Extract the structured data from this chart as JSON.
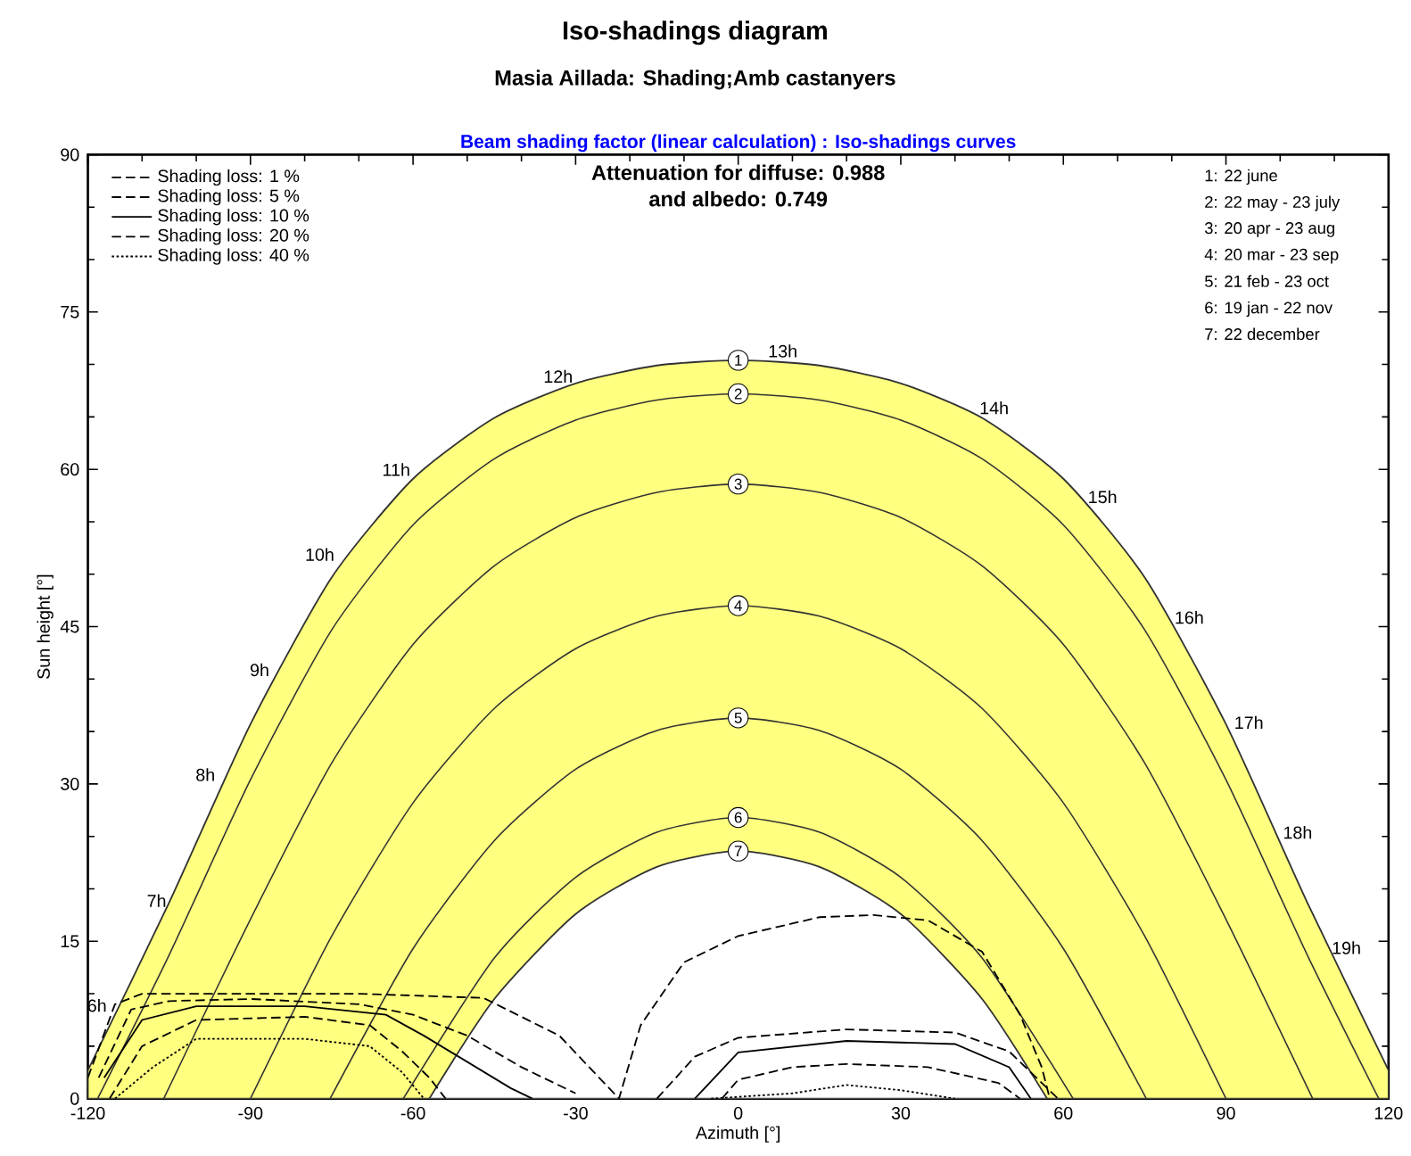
{
  "chart_data": {
    "type": "line",
    "title": "Iso-shadings diagram",
    "subtitle": "Masia Aillada: Shading;Amb castanyers",
    "xlabel": "Azimuth [°]",
    "ylabel": "Sun height [°]",
    "xlim": [
      -120,
      120
    ],
    "ylim": [
      0,
      90
    ],
    "xticks": [
      -120,
      -90,
      -60,
      -30,
      0,
      30,
      60,
      90,
      120
    ],
    "yticks": [
      0,
      15,
      30,
      45,
      60,
      75,
      90
    ],
    "legend": "top left",
    "series": [
      {
        "name": "1",
        "type": "area",
        "color": "#ffff80",
        "x": [
          -120,
          -105,
          -90,
          -75,
          -60,
          -45,
          -30,
          -15,
          0,
          15,
          30,
          45,
          60,
          75,
          90,
          105,
          120
        ],
        "values": [
          2.7,
          18.7,
          35.7,
          49.7,
          59.1,
          64.9,
          68.2,
          69.9,
          70.4,
          69.9,
          68.2,
          64.9,
          59.1,
          49.7,
          35.7,
          18.7,
          2.7
        ]
      },
      {
        "name": "7",
        "type": "area",
        "color": "#ffffff",
        "x": [
          -57,
          -45,
          -30,
          -15,
          0,
          15,
          30,
          45,
          57
        ],
        "values": [
          0,
          9.5,
          17.6,
          22.1,
          23.6,
          22.1,
          17.6,
          9.5,
          0
        ]
      },
      {
        "name": "2",
        "type": "line",
        "color": "#333333",
        "x": [
          -118.2,
          -105,
          -90,
          -75,
          -60,
          -45,
          -30,
          -15,
          0,
          15,
          30,
          45,
          60,
          75,
          90,
          105,
          118.2
        ],
        "values": [
          0,
          13.7,
          30.4,
          44.7,
          54.7,
          61.0,
          64.7,
          66.6,
          67.2,
          66.6,
          64.7,
          61.0,
          54.7,
          44.7,
          30.4,
          13.7,
          0
        ]
      },
      {
        "name": "3",
        "type": "line",
        "color": "#333333",
        "x": [
          -106,
          -90,
          -75,
          -60,
          -45,
          -30,
          -15,
          0,
          15,
          30,
          45,
          60,
          75,
          90,
          106
        ],
        "values": [
          0,
          17.1,
          32.0,
          43.3,
          50.8,
          55.4,
          57.8,
          58.6,
          57.8,
          55.4,
          50.8,
          43.3,
          32.0,
          17.1,
          0
        ]
      },
      {
        "name": "4",
        "type": "line",
        "color": "#333333",
        "x": [
          -90,
          -75,
          -60,
          -45,
          -30,
          -15,
          0,
          15,
          30,
          45,
          60,
          75,
          90
        ],
        "values": [
          0,
          15.5,
          28.2,
          37.2,
          42.9,
          46.0,
          47.0,
          46.0,
          42.9,
          37.2,
          28.2,
          15.5,
          0
        ]
      },
      {
        "name": "5",
        "type": "line",
        "color": "#333333",
        "x": [
          -75.3,
          -60,
          -45,
          -30,
          -15,
          0,
          15,
          30,
          45,
          60,
          75.3
        ],
        "values": [
          0,
          14.3,
          24.6,
          31.4,
          35.1,
          36.3,
          35.1,
          31.4,
          24.6,
          14.3,
          0
        ]
      },
      {
        "name": "6",
        "type": "line",
        "color": "#333333",
        "x": [
          -61.8,
          -45,
          -30,
          -15,
          0,
          15,
          30,
          45,
          61.8
        ],
        "values": [
          0,
          13.4,
          21.1,
          25.4,
          26.8,
          25.4,
          21.1,
          13.4,
          0
        ]
      },
      {
        "name": "Shading loss: 1 %",
        "type": "line",
        "color": "#000000",
        "line_style": "dashed",
        "x": [
          -120,
          -115,
          -110,
          -90,
          -70,
          -47,
          -33,
          -22,
          -18,
          -10,
          0,
          15,
          25,
          35,
          45,
          52,
          56,
          57.5
        ],
        "values": [
          2,
          9,
          10,
          10,
          10,
          9.6,
          6,
          0,
          7,
          13,
          15.5,
          17.3,
          17.5,
          17,
          14,
          8,
          3,
          0
        ]
      },
      {
        "name": "Shading loss: 5 %",
        "type": "line",
        "color": "#000000",
        "line_style": "dashed",
        "x": [
          -118,
          -112,
          -105,
          -90,
          -70,
          -60,
          -50,
          -40,
          -30,
          -20,
          -15,
          -8,
          0,
          20,
          40,
          50,
          55,
          59
        ],
        "values": [
          2,
          8.5,
          9.3,
          9.5,
          9,
          8,
          6,
          3,
          0.5,
          null,
          0,
          4,
          5.8,
          6.6,
          6.3,
          4.5,
          2,
          0
        ]
      },
      {
        "name": "Shading loss: 10 %",
        "type": "line",
        "color": "#000000",
        "line_style": "solid",
        "x": [
          -117,
          -110,
          -100,
          -80,
          -65,
          -58,
          -50,
          -42,
          -38,
          -20,
          -8,
          0,
          20,
          40,
          50,
          54
        ],
        "values": [
          2,
          7.5,
          8.8,
          8.8,
          8,
          6,
          3.5,
          1,
          0,
          null,
          0,
          4.4,
          5.5,
          5.2,
          3,
          0
        ]
      },
      {
        "name": "Shading loss: 20 %",
        "type": "line",
        "color": "#000000",
        "line_style": "dashed",
        "x": [
          -116,
          -110,
          -100,
          -80,
          -68,
          -62,
          -57,
          -54,
          -20,
          -3,
          0,
          10,
          20,
          35,
          48,
          52
        ],
        "values": [
          0,
          5,
          7.5,
          7.8,
          7,
          4.5,
          2,
          0,
          null,
          0,
          1.8,
          3,
          3.3,
          3,
          1.5,
          0
        ]
      },
      {
        "name": "Shading loss: 40 %",
        "type": "line",
        "color": "#000000",
        "line_style": "dotted",
        "x": [
          -115,
          -108,
          -100,
          -80,
          -68,
          -62,
          -58,
          -20,
          -5,
          10,
          20,
          30,
          40
        ],
        "values": [
          0,
          3,
          5.7,
          5.7,
          5,
          2.5,
          0,
          null,
          0,
          0.5,
          1.3,
          0.8,
          0
        ]
      }
    ],
    "annotations": [
      "Beam shading factor (linear calculation) : Iso-shadings curves",
      "Attenuation for diffuse: 0.988",
      "and albedo: 0.749",
      "1: 22 june",
      "2: 22 may - 23 july",
      "3: 20 apr - 23 aug",
      "4: 20 mar - 23 sep",
      "5: 21 feb - 23 oct",
      "6: 19 jan - 22 nov",
      "7: 22 december",
      {
        "text": "6h",
        "x": -116,
        "y": 8
      },
      {
        "text": "7h",
        "x": -105,
        "y": 18
      },
      {
        "text": "8h",
        "x": -96,
        "y": 30
      },
      {
        "text": "9h",
        "x": -86,
        "y": 40
      },
      {
        "text": "10h",
        "x": -74,
        "y": 51
      },
      {
        "text": "11h",
        "x": -60,
        "y": 59.1
      },
      {
        "text": "12h",
        "x": -30,
        "y": 68
      },
      {
        "text": "13h",
        "x": 5,
        "y": 70.4
      },
      {
        "text": "14h",
        "x": 44,
        "y": 65
      },
      {
        "text": "15h",
        "x": 64,
        "y": 56.5
      },
      {
        "text": "16h",
        "x": 80,
        "y": 45
      },
      {
        "text": "17h",
        "x": 91,
        "y": 35
      },
      {
        "text": "18h",
        "x": 100,
        "y": 24.5
      },
      {
        "text": "19h",
        "x": 109,
        "y": 13.5
      }
    ]
  }
}
